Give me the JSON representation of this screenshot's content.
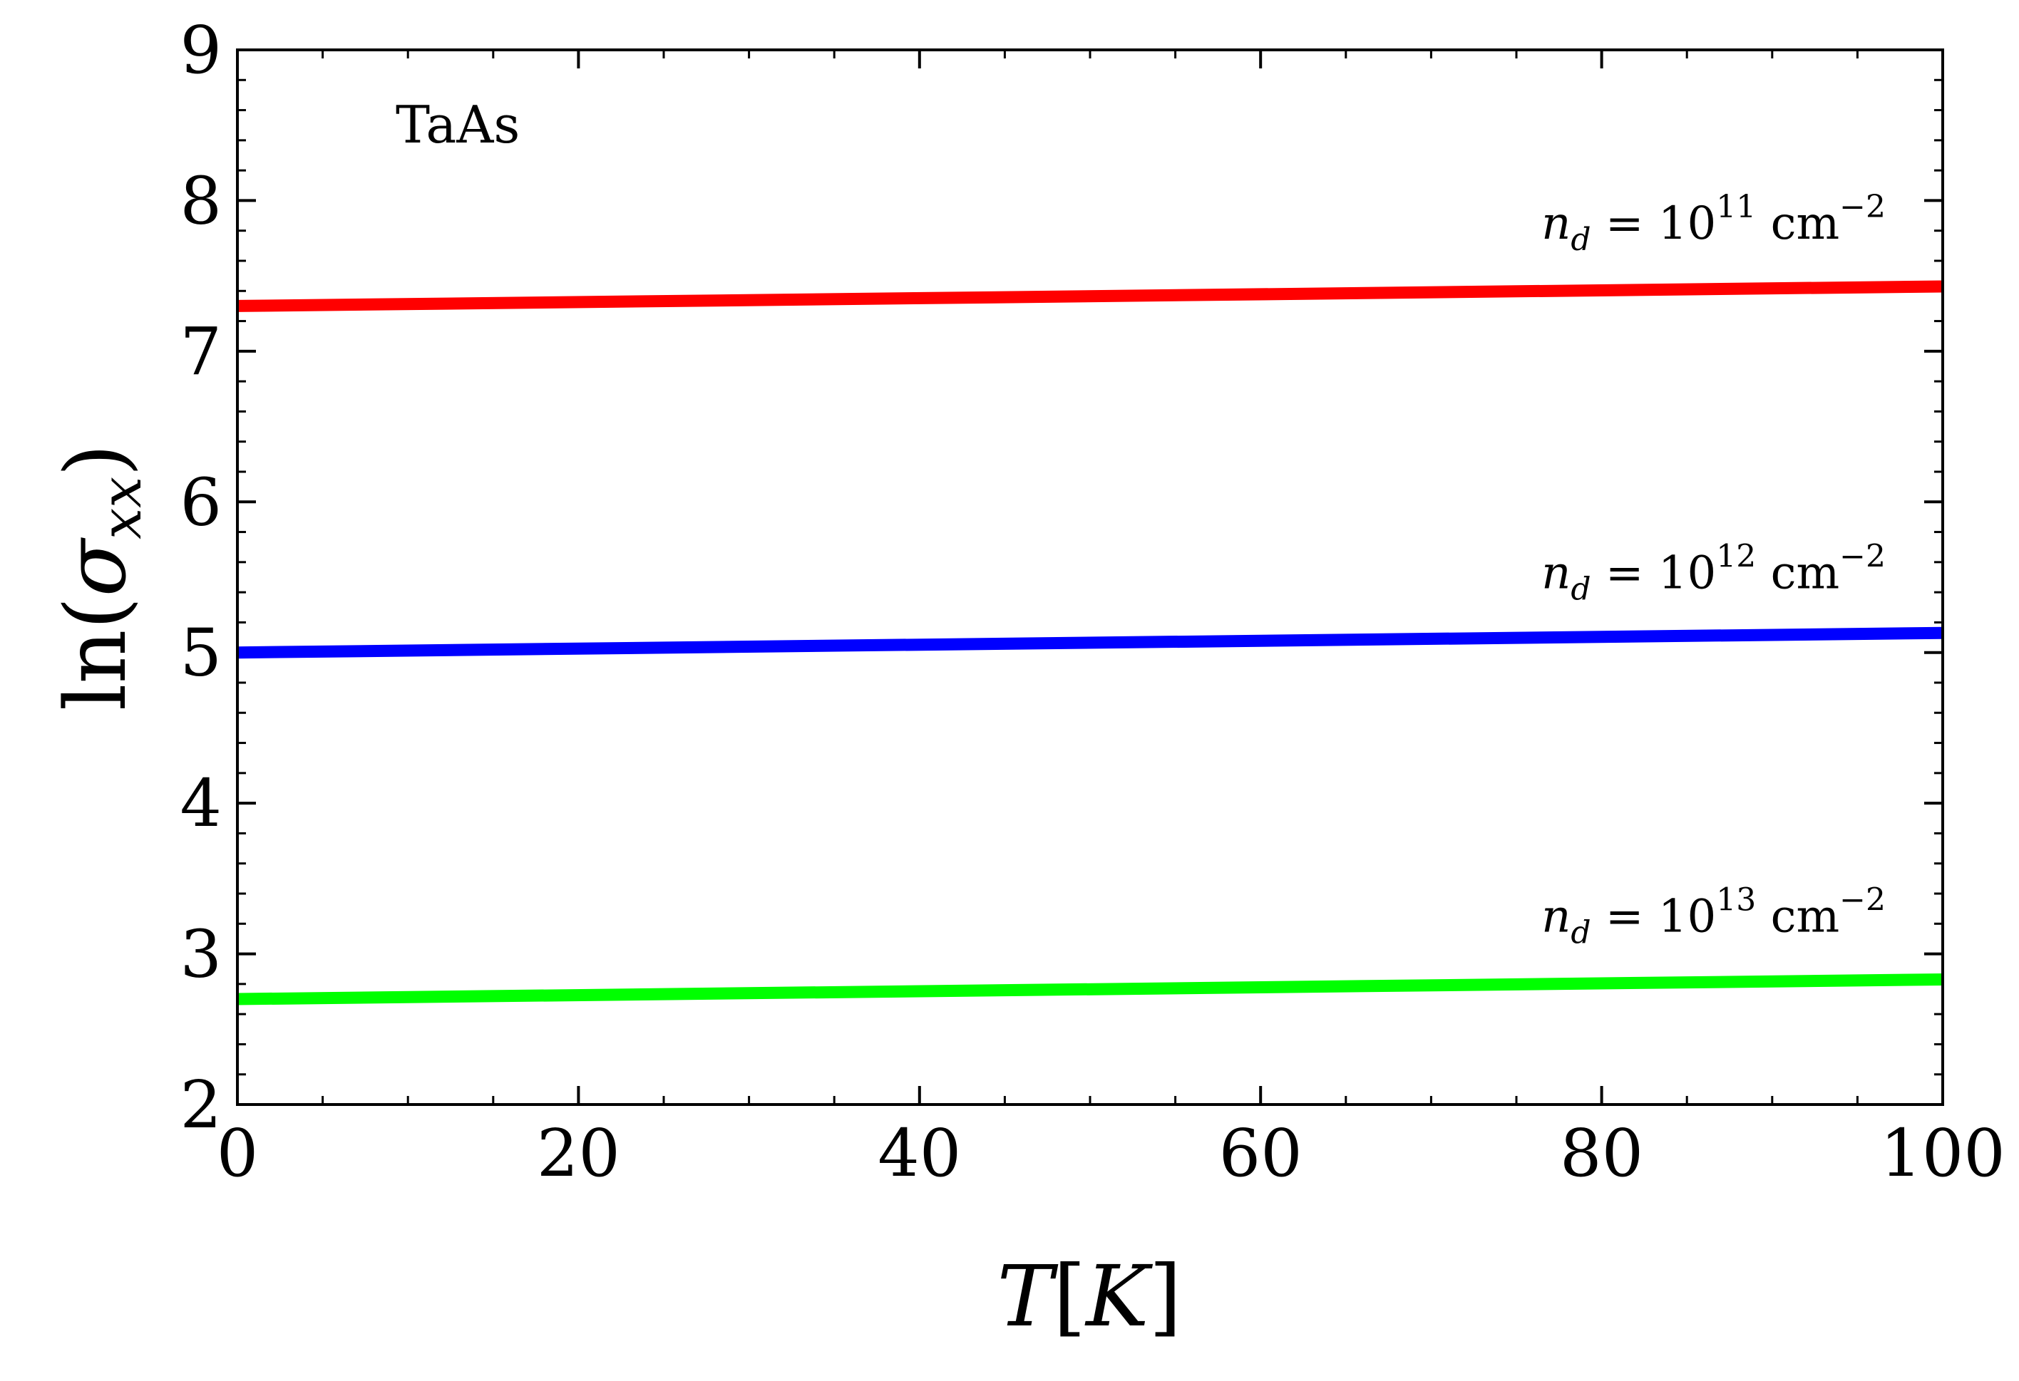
{
  "chart_data": {
    "type": "line",
    "title": "",
    "annotation": "TaAs",
    "xlabel_var": "T",
    "xlabel_unit": "K",
    "ylabel_fn": "ln(",
    "ylabel_sym": "σ",
    "ylabel_sub": "xx",
    "ylabel_close": ")",
    "xlim": [
      0,
      100
    ],
    "ylim": [
      2,
      9
    ],
    "xticks": [
      0,
      20,
      40,
      60,
      80,
      100
    ],
    "yticks": [
      2,
      3,
      4,
      5,
      6,
      7,
      8,
      9
    ],
    "x_minor_step": 5,
    "y_minor_step": 0.2,
    "grid": false,
    "series": [
      {
        "name": "n_d = 10^11 cm^-2",
        "var": "n",
        "sub": "d",
        "base": "10",
        "exp": "11",
        "unit": "cm",
        "unit_exp": "−2",
        "color": "#ff0000",
        "x": [
          0,
          100
        ],
        "y": [
          7.3,
          7.43
        ],
        "label_y": 7.85
      },
      {
        "name": "n_d = 10^12 cm^-2",
        "var": "n",
        "sub": "d",
        "base": "10",
        "exp": "12",
        "unit": "cm",
        "unit_exp": "−2",
        "color": "#0000ff",
        "x": [
          0,
          100
        ],
        "y": [
          5.0,
          5.13
        ],
        "label_y": 5.53
      },
      {
        "name": "n_d = 10^13 cm^-2",
        "var": "n",
        "sub": "d",
        "base": "10",
        "exp": "13",
        "unit": "cm",
        "unit_exp": "−2",
        "color": "#00ff00",
        "x": [
          0,
          100
        ],
        "y": [
          2.7,
          2.83
        ],
        "label_y": 3.25
      }
    ]
  }
}
